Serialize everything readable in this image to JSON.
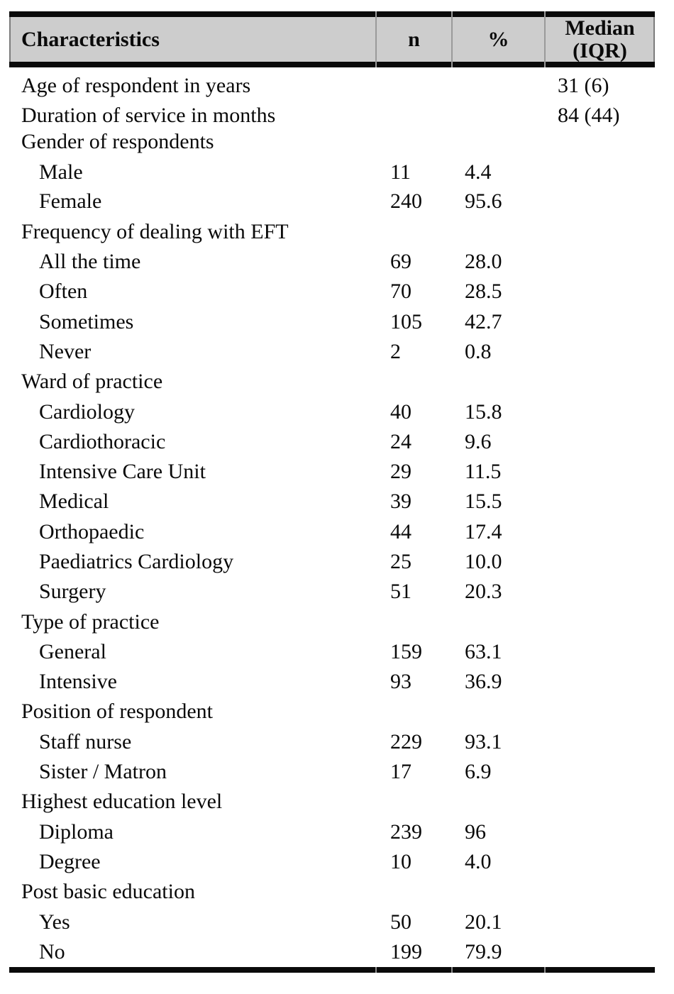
{
  "table": {
    "columns": {
      "characteristics": "Characteristics",
      "n": "n",
      "pct": "%",
      "median_line1": "Median",
      "median_line2": "(IQR)"
    },
    "colors": {
      "header_bg": "#cdcdcd",
      "border": "#0a0a0a",
      "text": "#0a0a0a"
    },
    "rows": [
      {
        "type": "median",
        "variant": "first",
        "label": "Age of respondent in years",
        "n": "",
        "pct": "",
        "median": "31 (6)"
      },
      {
        "type": "median",
        "label": "Duration of service in months",
        "n": "",
        "pct": "",
        "median": "84 (44)"
      },
      {
        "type": "section",
        "variant": "tight",
        "label": "Gender of respondents",
        "n": "",
        "pct": "",
        "median": ""
      },
      {
        "type": "item",
        "variant": "loose",
        "label": "Male",
        "n": "11",
        "pct": "4.4",
        "median": ""
      },
      {
        "type": "item",
        "label": "Female",
        "n": "240",
        "pct": "95.6",
        "median": ""
      },
      {
        "type": "section",
        "label": "Frequency of dealing with EFT",
        "n": "",
        "pct": "",
        "median": ""
      },
      {
        "type": "item",
        "label": "All the time",
        "n": "69",
        "pct": "28.0",
        "median": ""
      },
      {
        "type": "item",
        "label": "Often",
        "n": "70",
        "pct": "28.5",
        "median": ""
      },
      {
        "type": "item",
        "label": "Sometimes",
        "n": "105",
        "pct": "42.7",
        "median": ""
      },
      {
        "type": "item",
        "label": "Never",
        "n": "2",
        "pct": "0.8",
        "median": ""
      },
      {
        "type": "section",
        "label": "Ward of practice",
        "n": "",
        "pct": "",
        "median": ""
      },
      {
        "type": "item",
        "label": "Cardiology",
        "n": "40",
        "pct": "15.8",
        "median": ""
      },
      {
        "type": "item",
        "label": "Cardiothoracic",
        "n": "24",
        "pct": "9.6",
        "median": ""
      },
      {
        "type": "item",
        "label": "Intensive Care Unit",
        "n": "29",
        "pct": "11.5",
        "median": ""
      },
      {
        "type": "item",
        "label": "Medical",
        "n": "39",
        "pct": "15.5",
        "median": ""
      },
      {
        "type": "item",
        "label": "Orthopaedic",
        "n": "44",
        "pct": "17.4",
        "median": ""
      },
      {
        "type": "item",
        "label": "Paediatrics Cardiology",
        "n": "25",
        "pct": "10.0",
        "median": ""
      },
      {
        "type": "item",
        "label": "Surgery",
        "n": "51",
        "pct": "20.3",
        "median": ""
      },
      {
        "type": "section",
        "label": "Type of practice",
        "n": "",
        "pct": "",
        "median": ""
      },
      {
        "type": "item",
        "label": "General",
        "n": "159",
        "pct": "63.1",
        "median": ""
      },
      {
        "type": "item",
        "label": "Intensive",
        "n": "93",
        "pct": "36.9",
        "median": ""
      },
      {
        "type": "section",
        "label": "Position of respondent",
        "n": "",
        "pct": "",
        "median": ""
      },
      {
        "type": "item",
        "label": "Staff nurse",
        "n": "229",
        "pct": "93.1",
        "median": ""
      },
      {
        "type": "item",
        "label": "Sister / Matron",
        "n": "17",
        "pct": "6.9",
        "median": ""
      },
      {
        "type": "section",
        "label": "Highest education level",
        "n": "",
        "pct": "",
        "median": ""
      },
      {
        "type": "item",
        "label": "Diploma",
        "n": "239",
        "pct": "96",
        "median": ""
      },
      {
        "type": "item",
        "label": "Degree",
        "n": "10",
        "pct": "4.0",
        "median": ""
      },
      {
        "type": "section",
        "label": "Post basic education",
        "n": "",
        "pct": "",
        "median": ""
      },
      {
        "type": "item",
        "label": "Yes",
        "n": "50",
        "pct": "20.1",
        "median": ""
      },
      {
        "type": "item",
        "label": "No",
        "n": "199",
        "pct": "79.9",
        "median": ""
      }
    ]
  },
  "chart_data": {
    "type": "table",
    "columns": [
      "Characteristics",
      "n",
      "%",
      "Median (IQR)"
    ],
    "sections": [
      {
        "label": "Age of respondent in years",
        "median_iqr": "31 (6)"
      },
      {
        "label": "Duration of service in months",
        "median_iqr": "84 (44)"
      },
      {
        "label": "Gender of respondents",
        "items": [
          {
            "label": "Male",
            "n": 11,
            "pct": 4.4
          },
          {
            "label": "Female",
            "n": 240,
            "pct": 95.6
          }
        ]
      },
      {
        "label": "Frequency of dealing with EFT",
        "items": [
          {
            "label": "All the time",
            "n": 69,
            "pct": 28.0
          },
          {
            "label": "Often",
            "n": 70,
            "pct": 28.5
          },
          {
            "label": "Sometimes",
            "n": 105,
            "pct": 42.7
          },
          {
            "label": "Never",
            "n": 2,
            "pct": 0.8
          }
        ]
      },
      {
        "label": "Ward of practice",
        "items": [
          {
            "label": "Cardiology",
            "n": 40,
            "pct": 15.8
          },
          {
            "label": "Cardiothoracic",
            "n": 24,
            "pct": 9.6
          },
          {
            "label": "Intensive Care Unit",
            "n": 29,
            "pct": 11.5
          },
          {
            "label": "Medical",
            "n": 39,
            "pct": 15.5
          },
          {
            "label": "Orthopaedic",
            "n": 44,
            "pct": 17.4
          },
          {
            "label": "Paediatrics Cardiology",
            "n": 25,
            "pct": 10.0
          },
          {
            "label": "Surgery",
            "n": 51,
            "pct": 20.3
          }
        ]
      },
      {
        "label": "Type of practice",
        "items": [
          {
            "label": "General",
            "n": 159,
            "pct": 63.1
          },
          {
            "label": "Intensive",
            "n": 93,
            "pct": 36.9
          }
        ]
      },
      {
        "label": "Position of respondent",
        "items": [
          {
            "label": "Staff nurse",
            "n": 229,
            "pct": 93.1
          },
          {
            "label": "Sister / Matron",
            "n": 17,
            "pct": 6.9
          }
        ]
      },
      {
        "label": "Highest education level",
        "items": [
          {
            "label": "Diploma",
            "n": 239,
            "pct": 96
          },
          {
            "label": "Degree",
            "n": 10,
            "pct": 4.0
          }
        ]
      },
      {
        "label": "Post basic education",
        "items": [
          {
            "label": "Yes",
            "n": 50,
            "pct": 20.1
          },
          {
            "label": "No",
            "n": 199,
            "pct": 79.9
          }
        ]
      }
    ]
  }
}
